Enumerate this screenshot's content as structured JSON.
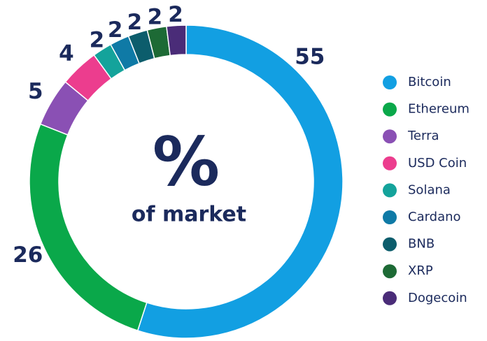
{
  "chart_data": {
    "type": "donut",
    "center_label": "%",
    "center_sublabel": "of market",
    "categories": [
      "Bitcoin",
      "Ethereum",
      "Terra",
      "USD Coin",
      "Solana",
      "Cardano",
      "BNB",
      "XRP",
      "Dogecoin"
    ],
    "values": [
      55,
      26,
      5,
      4,
      2,
      2,
      2,
      2,
      2
    ],
    "colors": [
      "#129fe2",
      "#0aa84a",
      "#8a50b4",
      "#ec3d8e",
      "#14a39b",
      "#0f7aa6",
      "#0c5d6c",
      "#1d6a35",
      "#4a2c78"
    ],
    "legend": "right"
  }
}
